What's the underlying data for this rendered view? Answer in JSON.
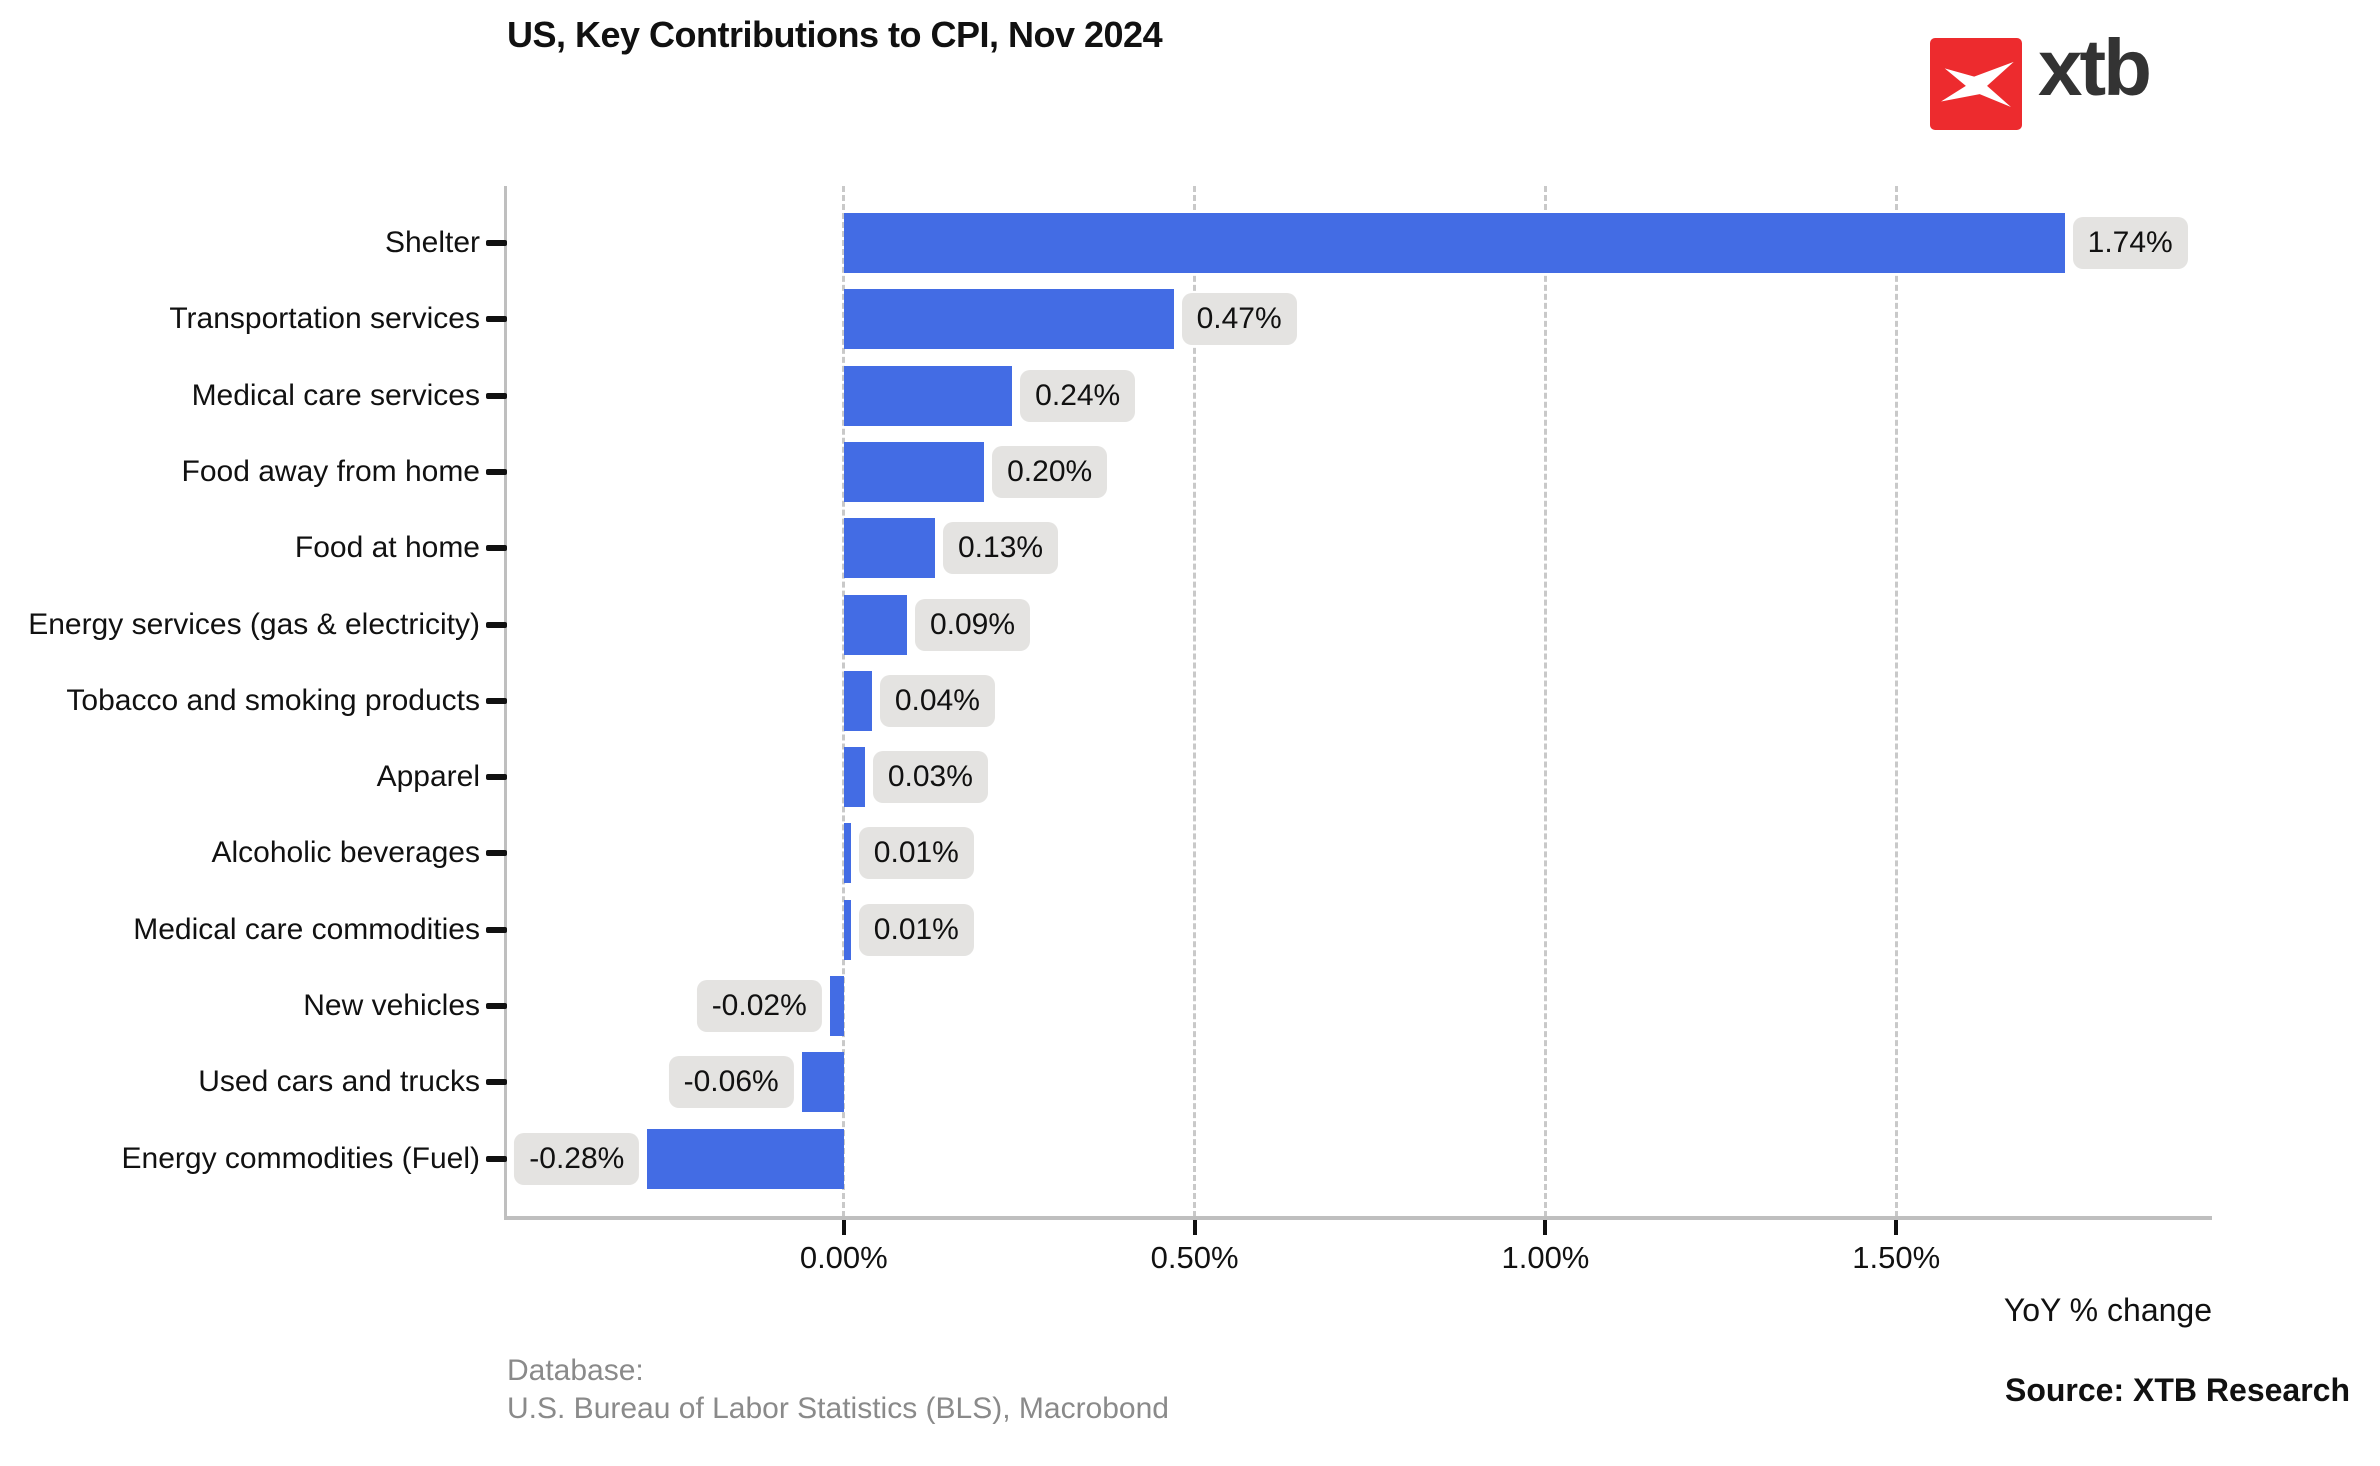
{
  "header": {
    "title": "US, Key Contributions to CPI, Nov 2024",
    "logo_text": "xtb"
  },
  "chart_data": {
    "type": "bar",
    "orientation": "horizontal",
    "title": "US, Key Contributions to CPI, Nov 2024",
    "categories": [
      "Shelter",
      "Transportation services",
      "Medical care services",
      "Food away from home",
      "Food at home",
      "Energy services (gas & electricity)",
      "Tobacco and smoking products",
      "Apparel",
      "Alcoholic beverages",
      "Medical care commodities",
      "New vehicles",
      "Used cars and trucks",
      "Energy commodities (Fuel)"
    ],
    "values": [
      1.74,
      0.47,
      0.24,
      0.2,
      0.13,
      0.09,
      0.04,
      0.03,
      0.01,
      0.01,
      -0.02,
      -0.06,
      -0.28
    ],
    "value_labels": [
      "1.74%",
      "0.47%",
      "0.24%",
      "0.20%",
      "0.13%",
      "0.09%",
      "0.04%",
      "0.03%",
      "0.01%",
      "0.01%",
      "-0.02%",
      "-0.06%",
      "-0.28%"
    ],
    "x_ticks": [
      {
        "value": 0.0,
        "label": "0.00%"
      },
      {
        "value": 0.5,
        "label": "0.50%"
      },
      {
        "value": 1.0,
        "label": "1.00%"
      },
      {
        "value": 1.5,
        "label": "1.50%"
      }
    ],
    "xlabel": "YoY % change",
    "ylabel": "",
    "xlim": [
      -0.48,
      1.95
    ],
    "grid": "vertical-dashed",
    "legend": "none"
  },
  "footer": {
    "database_label": "Database:",
    "database_value": "U.S. Bureau of Labor Statistics (BLS), Macrobond",
    "source": "Source: XTB Research"
  },
  "colors": {
    "bar": "#436CE4",
    "value_box_bg": "#E4E3E1",
    "grid": "#C9C9C9",
    "axis": "#BFBFBF",
    "text": "#111111",
    "footer_text": "#8A8A8A",
    "logo_red": "#ED2B2E",
    "logo_text": "#333333"
  }
}
